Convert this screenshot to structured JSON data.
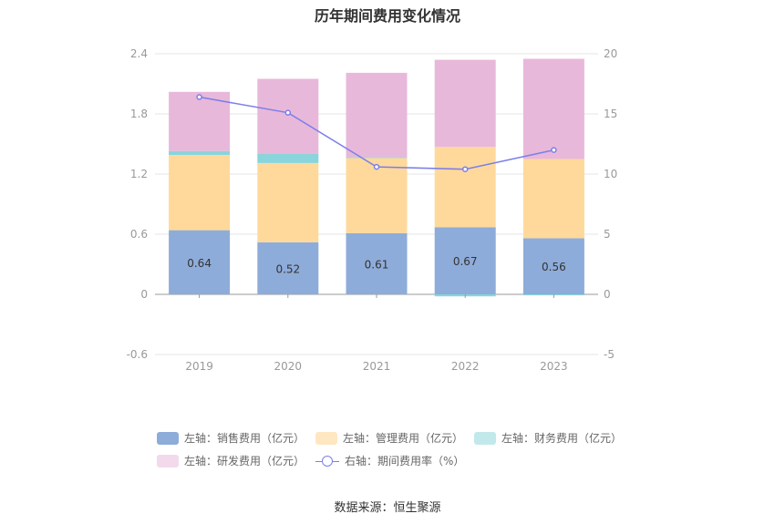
{
  "chart_data": {
    "type": "bar",
    "title": "历年期间费用变化情况",
    "categories": [
      "2019",
      "2020",
      "2021",
      "2022",
      "2023"
    ],
    "left_axis": {
      "range": [
        -0.6,
        2.4
      ],
      "ticks": [
        "2.4",
        "1.8",
        "1.2",
        "0.6",
        "0",
        "-0.6"
      ]
    },
    "right_axis": {
      "range": [
        -5,
        20
      ],
      "ticks": [
        "20",
        "15",
        "10",
        "5",
        "0",
        "-5"
      ]
    },
    "series": [
      {
        "name": "左轴：销售费用（亿元）",
        "type": "bar",
        "axis": "left",
        "color": "#8eacd9",
        "values": [
          0.64,
          0.52,
          0.61,
          0.67,
          0.56
        ],
        "labels": [
          "0.64",
          "0.52",
          "0.61",
          "0.67",
          "0.56"
        ]
      },
      {
        "name": "左轴：管理费用（亿元）",
        "type": "bar",
        "axis": "left",
        "color": "#ffd99b",
        "values": [
          0.75,
          0.79,
          0.75,
          0.8,
          0.79
        ]
      },
      {
        "name": "左轴：财务费用（亿元）",
        "type": "bar",
        "axis": "left",
        "color": "#8ad4dc",
        "values": [
          0.04,
          0.09,
          0.01,
          -0.02,
          -0.01
        ]
      },
      {
        "name": "左轴：研发费用（亿元）",
        "type": "bar",
        "axis": "left",
        "color": "#e8b8da",
        "values": [
          0.59,
          0.75,
          0.84,
          0.87,
          1.0
        ]
      },
      {
        "name": "右轴：期间费用率（%）",
        "type": "line",
        "axis": "right",
        "color": "#7b7fe9",
        "values": [
          16.4,
          15.1,
          10.6,
          10.4,
          12.0
        ]
      }
    ]
  },
  "source": "数据来源：恒生聚源"
}
